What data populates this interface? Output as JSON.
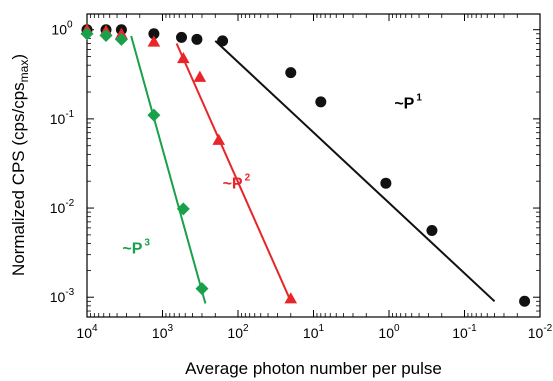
{
  "chart_data": {
    "type": "scatter",
    "title": "",
    "xlabel": "Average photon number per pulse",
    "ylabel": "Normalized CPS (cps/cps",
    "ylabel_sub": "max",
    "ylabel_close": ")",
    "x_scale": "log",
    "x_reversed": true,
    "y_scale": "log",
    "xlim": [
      10000,
      0.01
    ],
    "ylim": [
      0.0006,
      1.5
    ],
    "x_ticks": [
      {
        "value": 10000,
        "base": "10",
        "exp": "4"
      },
      {
        "value": 1000,
        "base": "10",
        "exp": "3"
      },
      {
        "value": 100,
        "base": "10",
        "exp": "2"
      },
      {
        "value": 10,
        "base": "10",
        "exp": "1"
      },
      {
        "value": 1,
        "base": "10",
        "exp": "0"
      },
      {
        "value": 0.1,
        "base": "10",
        "exp": "-1"
      },
      {
        "value": 0.01,
        "base": "10",
        "exp": "-2"
      }
    ],
    "y_ticks": [
      {
        "value": 1,
        "base": "10",
        "exp": "0"
      },
      {
        "value": 0.1,
        "base": "10",
        "exp": "-1"
      },
      {
        "value": 0.01,
        "base": "10",
        "exp": "-2"
      },
      {
        "value": 0.001,
        "base": "10",
        "exp": "-3"
      }
    ],
    "series": [
      {
        "marker": "circle",
        "color": "#111111",
        "points": [
          {
            "x": 10000,
            "y": 1.0
          },
          {
            "x": 5600,
            "y": 1.0
          },
          {
            "x": 3500,
            "y": 1.0
          },
          {
            "x": 1300,
            "y": 0.9
          },
          {
            "x": 560,
            "y": 0.82
          },
          {
            "x": 350,
            "y": 0.78
          },
          {
            "x": 160,
            "y": 0.75
          },
          {
            "x": 20,
            "y": 0.33
          },
          {
            "x": 8,
            "y": 0.155
          },
          {
            "x": 1.1,
            "y": 0.019
          },
          {
            "x": 0.27,
            "y": 0.0056
          },
          {
            "x": 0.016,
            "y": 0.0009
          }
        ],
        "fit": [
          {
            "x": 200,
            "y": 0.75
          },
          {
            "x": 0.04,
            "y": 0.0009
          }
        ],
        "annotation": {
          "base": "~P",
          "exp": "1",
          "x": 0.85,
          "y": 0.13
        }
      },
      {
        "marker": "triangle",
        "color": "#e8262a",
        "points": [
          {
            "x": 10000,
            "y": 0.98
          },
          {
            "x": 5600,
            "y": 0.95
          },
          {
            "x": 3500,
            "y": 0.88
          },
          {
            "x": 1300,
            "y": 0.72
          },
          {
            "x": 530,
            "y": 0.47
          },
          {
            "x": 320,
            "y": 0.29
          },
          {
            "x": 180,
            "y": 0.057
          },
          {
            "x": 20,
            "y": 0.00095
          }
        ],
        "fit": [
          {
            "x": 650,
            "y": 0.7
          },
          {
            "x": 20,
            "y": 0.0009
          }
        ],
        "annotation": {
          "base": "~P",
          "exp": "2",
          "x": 160,
          "y": 0.0165
        }
      },
      {
        "marker": "diamond",
        "color": "#1aa04a",
        "points": [
          {
            "x": 10000,
            "y": 0.9
          },
          {
            "x": 5600,
            "y": 0.86
          },
          {
            "x": 3500,
            "y": 0.78
          },
          {
            "x": 1300,
            "y": 0.11
          },
          {
            "x": 530,
            "y": 0.0098
          },
          {
            "x": 300,
            "y": 0.00125
          }
        ],
        "fit": [
          {
            "x": 2600,
            "y": 0.85
          },
          {
            "x": 270,
            "y": 0.00085
          }
        ],
        "annotation": {
          "base": "~P",
          "exp": "3",
          "x": 3400,
          "y": 0.0031
        }
      }
    ]
  }
}
